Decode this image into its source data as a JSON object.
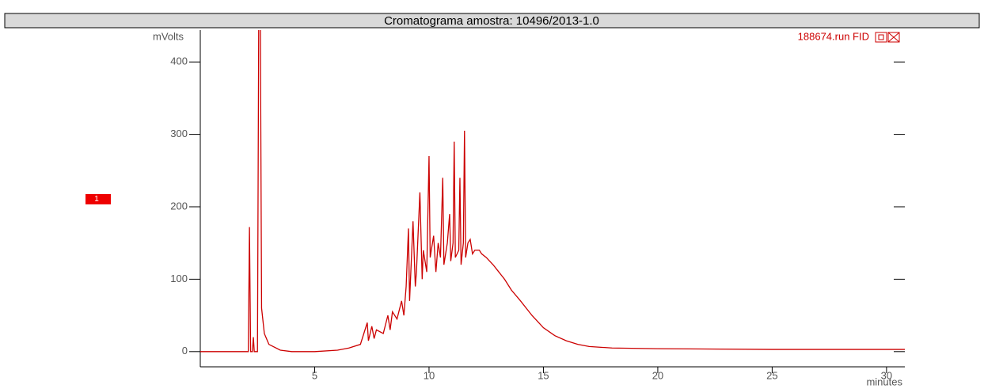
{
  "chart_data": {
    "type": "line",
    "title": "Cromatograma amostra: 10496/2013-1.0",
    "y_label": "mVolts",
    "x_label": "minutes",
    "marker_label": "1",
    "x": [
      0,
      2.1,
      2.15,
      2.2,
      2.28,
      2.32,
      2.36,
      2.5,
      2.56,
      2.62,
      2.68,
      2.8,
      3.0,
      3.5,
      4.0,
      5.0,
      6.0,
      6.5,
      7.0,
      7.3,
      7.35,
      7.5,
      7.6,
      7.7,
      8.0,
      8.2,
      8.3,
      8.4,
      8.6,
      8.8,
      8.9,
      9.0,
      9.1,
      9.15,
      9.3,
      9.4,
      9.45,
      9.6,
      9.7,
      9.75,
      9.9,
      10.0,
      10.05,
      10.2,
      10.3,
      10.4,
      10.5,
      10.6,
      10.65,
      10.8,
      10.9,
      10.95,
      11.05,
      11.1,
      11.15,
      11.3,
      11.35,
      11.4,
      11.5,
      11.55,
      11.6,
      11.7,
      11.8,
      11.9,
      12.0,
      12.2,
      12.3,
      12.5,
      12.8,
      13.0,
      13.3,
      13.6,
      14.0,
      14.5,
      15.0,
      15.5,
      16.0,
      16.5,
      17.0,
      18.0,
      20.0,
      25.0,
      30.8
    ],
    "series": [
      {
        "name": "188674.run FID",
        "color": "#cc0000",
        "values": [
          0,
          0,
          172,
          0,
          0,
          20,
          0,
          0,
          500,
          500,
          60,
          25,
          10,
          2,
          0,
          0,
          2,
          5,
          10,
          40,
          15,
          35,
          18,
          30,
          25,
          50,
          30,
          55,
          45,
          70,
          50,
          90,
          170,
          70,
          180,
          90,
          110,
          220,
          100,
          140,
          110,
          270,
          130,
          160,
          110,
          150,
          130,
          240,
          120,
          150,
          190,
          125,
          150,
          290,
          130,
          140,
          240,
          120,
          150,
          305,
          130,
          150,
          155,
          135,
          140,
          140,
          135,
          130,
          120,
          112,
          100,
          85,
          70,
          50,
          33,
          22,
          15,
          10,
          7,
          5,
          4,
          3,
          3
        ]
      }
    ],
    "xlim": [
      0,
      30.8
    ],
    "ylim": [
      -21,
      444
    ],
    "xticks": [
      5,
      10,
      15,
      20,
      25,
      30
    ],
    "yticks": [
      0,
      100,
      200,
      300,
      400
    ]
  }
}
